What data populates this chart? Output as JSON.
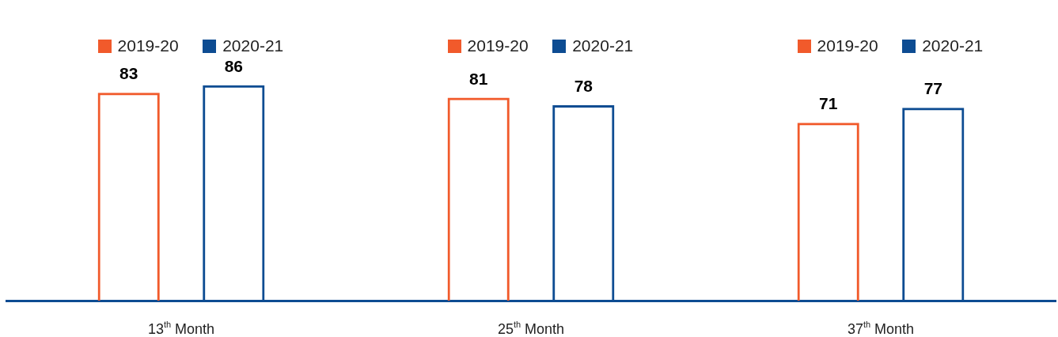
{
  "chart_data": {
    "type": "bar",
    "categories": [
      "13$^{th}$ Month",
      "25$^{th}$ Month",
      "37$^{th}$ Month"
    ],
    "series": [
      {
        "name": "2019-20",
        "color": "#f15a2b",
        "values": [
          83,
          81,
          71
        ]
      },
      {
        "name": "2020-21",
        "color": "#0d4c92",
        "values": [
          86,
          78,
          77
        ]
      }
    ],
    "data_labels": true,
    "legend": "top",
    "grid": false
  }
}
